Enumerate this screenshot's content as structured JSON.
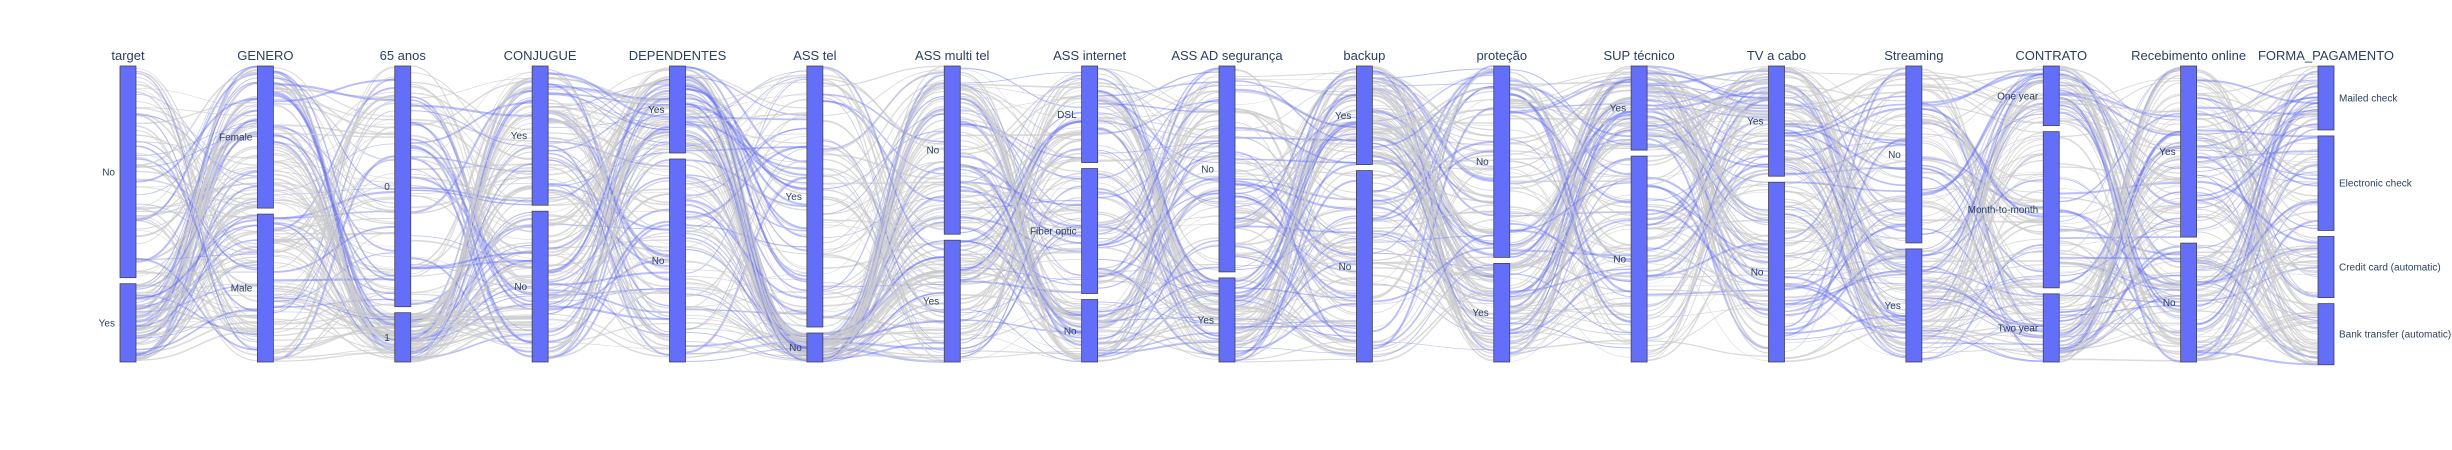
{
  "chart_data": {
    "type": "parallel_categories",
    "colors": {
      "band": "#636efa",
      "band_border": "#444444",
      "highlight_line": "#636efa",
      "base_line": "#cccccc",
      "title_text": "#2a3f5f"
    },
    "dimensions": [
      {
        "title": "target",
        "categories": [
          {
            "label": "No",
            "share": 0.73
          },
          {
            "label": "Yes",
            "share": 0.27
          }
        ]
      },
      {
        "title": "GENERO",
        "categories": [
          {
            "label": "Female",
            "share": 0.49
          },
          {
            "label": "Male",
            "share": 0.51
          }
        ]
      },
      {
        "title": "65 anos",
        "categories": [
          {
            "label": "0",
            "share": 0.83
          },
          {
            "label": "1",
            "share": 0.17
          }
        ]
      },
      {
        "title": "CONJUGUE",
        "categories": [
          {
            "label": "Yes",
            "share": 0.48
          },
          {
            "label": "No",
            "share": 0.52
          }
        ]
      },
      {
        "title": "DEPENDENTES",
        "categories": [
          {
            "label": "Yes",
            "share": 0.3
          },
          {
            "label": "No",
            "share": 0.7
          }
        ]
      },
      {
        "title": "ASS tel",
        "categories": [
          {
            "label": "Yes",
            "share": 0.9
          },
          {
            "label": "No",
            "share": 0.1
          }
        ]
      },
      {
        "title": "ASS multi tel",
        "categories": [
          {
            "label": "No",
            "share": 0.58
          },
          {
            "label": "Yes",
            "share": 0.42
          }
        ]
      },
      {
        "title": "ASS internet",
        "categories": [
          {
            "label": "DSL",
            "share": 0.34
          },
          {
            "label": "Fiber optic",
            "share": 0.44
          },
          {
            "label": "No",
            "share": 0.22
          }
        ]
      },
      {
        "title": "ASS AD segurança",
        "categories": [
          {
            "label": "No",
            "share": 0.71
          },
          {
            "label": "Yes",
            "share": 0.29
          }
        ]
      },
      {
        "title": "backup",
        "categories": [
          {
            "label": "Yes",
            "share": 0.34
          },
          {
            "label": "No",
            "share": 0.66
          }
        ]
      },
      {
        "title": "proteção",
        "categories": [
          {
            "label": "No",
            "share": 0.66
          },
          {
            "label": "Yes",
            "share": 0.34
          }
        ]
      },
      {
        "title": "SUP técnico",
        "categories": [
          {
            "label": "Yes",
            "share": 0.29
          },
          {
            "label": "No",
            "share": 0.71
          }
        ]
      },
      {
        "title": "TV a cabo",
        "categories": [
          {
            "label": "Yes",
            "share": 0.38
          },
          {
            "label": "No",
            "share": 0.62
          }
        ]
      },
      {
        "title": "Streaming",
        "categories": [
          {
            "label": "No",
            "share": 0.61
          },
          {
            "label": "Yes",
            "share": 0.39
          }
        ]
      },
      {
        "title": "CONTRATO",
        "categories": [
          {
            "label": "One year",
            "share": 0.21
          },
          {
            "label": "Month-to-month",
            "share": 0.55
          },
          {
            "label": "Two year",
            "share": 0.24
          }
        ]
      },
      {
        "title": "Recebimento online",
        "categories": [
          {
            "label": "Yes",
            "share": 0.59
          },
          {
            "label": "No",
            "share": 0.41
          }
        ]
      },
      {
        "title": "FORMA_PAGAMENTO",
        "categories": [
          {
            "label": "Mailed check",
            "share": 0.23
          },
          {
            "label": "Electronic check",
            "share": 0.34
          },
          {
            "label": "Credit card (automatic)",
            "share": 0.22
          },
          {
            "label": "Bank transfer (automatic)",
            "share": 0.22
          }
        ]
      }
    ]
  }
}
